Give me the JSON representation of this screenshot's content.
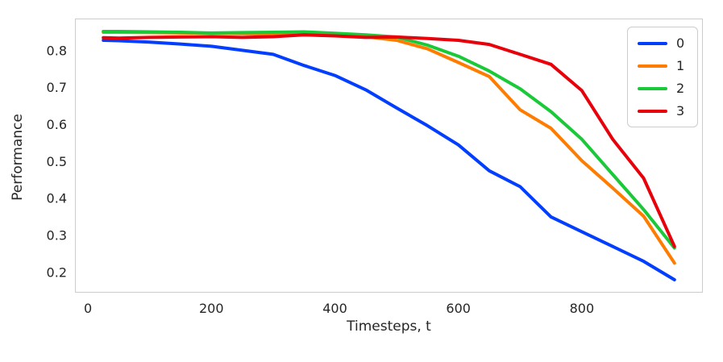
{
  "chart_data": {
    "type": "line",
    "title": "",
    "xlabel": "Timesteps, t",
    "ylabel": "Performance",
    "xlim": [
      -21,
      996
    ],
    "ylim": [
      0.145,
      0.887
    ],
    "grid": false,
    "xtick_values": [
      0,
      200,
      400,
      600,
      800
    ],
    "xtick_labels": [
      "0",
      "200",
      "400",
      "600",
      "800"
    ],
    "ytick_values": [
      0.2,
      0.3,
      0.4,
      0.5,
      0.6,
      0.7,
      0.8
    ],
    "ytick_labels": [
      "0.2",
      "0.3",
      "0.4",
      "0.5",
      "0.6",
      "0.7",
      "0.8"
    ],
    "x": [
      25,
      50,
      100,
      150,
      200,
      250,
      300,
      350,
      400,
      450,
      500,
      550,
      600,
      650,
      700,
      750,
      800,
      850,
      900,
      950
    ],
    "series": [
      {
        "name": "0",
        "color": "#023EFF",
        "values": [
          0.828,
          0.827,
          0.823,
          0.818,
          0.812,
          0.801,
          0.79,
          0.76,
          0.733,
          0.694,
          0.645,
          0.597,
          0.545,
          0.475,
          0.432,
          0.35,
          0.31,
          0.27,
          0.23,
          0.18
        ]
      },
      {
        "name": "1",
        "color": "#FF7C00",
        "values": [
          0.85,
          0.85,
          0.849,
          0.848,
          0.847,
          0.846,
          0.845,
          0.843,
          0.841,
          0.838,
          0.828,
          0.805,
          0.768,
          0.73,
          0.64,
          0.59,
          0.502,
          0.428,
          0.352,
          0.225
        ]
      },
      {
        "name": "2",
        "color": "#1AC938",
        "values": [
          0.852,
          0.852,
          0.851,
          0.85,
          0.848,
          0.849,
          0.85,
          0.851,
          0.847,
          0.843,
          0.837,
          0.815,
          0.785,
          0.745,
          0.697,
          0.635,
          0.56,
          0.465,
          0.37,
          0.266
        ]
      },
      {
        "name": "3",
        "color": "#E8000B",
        "values": [
          0.835,
          0.834,
          0.836,
          0.837,
          0.838,
          0.836,
          0.838,
          0.843,
          0.84,
          0.836,
          0.837,
          0.833,
          0.828,
          0.817,
          0.79,
          0.763,
          0.692,
          0.56,
          0.455,
          0.27
        ]
      }
    ],
    "legend": {
      "position": "upper right",
      "entries": [
        "0",
        "1",
        "2",
        "3"
      ]
    },
    "style": {
      "line_width": 4,
      "spine_color": "#cccccc",
      "tick_color": "#262626",
      "background": "#ffffff"
    }
  }
}
